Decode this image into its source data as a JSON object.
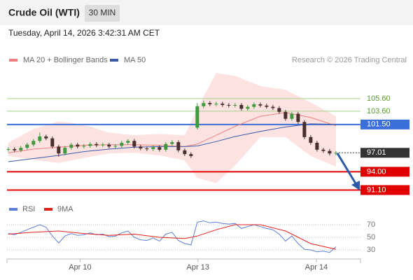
{
  "header": {
    "title": "Crude Oil (WTI)",
    "interval": "30 MIN",
    "timestamp": "Tuesday, April 14, 2026 3:42:31 AM CET"
  },
  "chart_data": [
    {
      "type": "candlestick",
      "annotation": "Research © 2026 Trading Central",
      "x": [
        0,
        1,
        2,
        3,
        4,
        5,
        6,
        7,
        8,
        9,
        10,
        11,
        12,
        13,
        14,
        15,
        16,
        17,
        18,
        19,
        20,
        21,
        22,
        23,
        24,
        25,
        26,
        27,
        28,
        29,
        30,
        31,
        32,
        33,
        34,
        35,
        36,
        37,
        38,
        39,
        40,
        41,
        42,
        43,
        44,
        45,
        46,
        47,
        48,
        49,
        50,
        51,
        52
      ],
      "open": [
        97.5,
        97.6,
        97.4,
        97.8,
        98.3,
        98.9,
        99.6,
        99.3,
        98.0,
        96.9,
        97.8,
        98.3,
        98.0,
        98.1,
        98.4,
        98.2,
        98.3,
        98.0,
        98.1,
        98.6,
        98.9,
        98.0,
        97.7,
        97.6,
        97.9,
        97.5,
        98.4,
        98.7,
        97.4,
        96.8,
        101.0,
        104.4,
        104.9,
        104.7,
        104.8,
        104.6,
        104.5,
        104.6,
        104.0,
        104.3,
        104.7,
        104.5,
        104.3,
        104.1,
        103.5,
        102.4,
        103.2,
        101.9,
        99.5,
        98.6,
        97.5,
        97.3,
        96.9
      ],
      "high": [
        97.9,
        97.9,
        98.1,
        98.6,
        99.2,
        100.2,
        99.9,
        99.6,
        98.3,
        98.1,
        98.6,
        98.6,
        98.4,
        98.7,
        98.7,
        98.6,
        98.6,
        98.4,
        98.9,
        99.2,
        99.2,
        98.3,
        98.0,
        98.2,
        98.2,
        98.7,
        99.0,
        99.0,
        97.7,
        97.1,
        104.9,
        105.3,
        105.2,
        105.1,
        105.1,
        104.9,
        104.9,
        104.9,
        104.6,
        105.0,
        105.0,
        104.8,
        104.6,
        104.4,
        103.8,
        103.5,
        103.5,
        102.2,
        99.8,
        98.9,
        97.8,
        97.6,
        97.3
      ],
      "low": [
        97.2,
        97.1,
        97.1,
        97.5,
        98.0,
        98.6,
        99.0,
        97.7,
        96.4,
        96.6,
        97.5,
        97.7,
        97.7,
        97.8,
        97.9,
        97.9,
        97.7,
        97.7,
        97.8,
        98.3,
        97.7,
        97.4,
        97.3,
        97.3,
        97.2,
        97.2,
        98.1,
        97.1,
        96.5,
        96.2,
        100.7,
        104.1,
        104.4,
        104.4,
        104.3,
        104.2,
        104.2,
        103.7,
        103.7,
        104.0,
        104.2,
        104.0,
        103.8,
        103.2,
        102.1,
        102.1,
        101.6,
        99.2,
        98.3,
        97.2,
        97.0,
        96.6,
        96.6
      ],
      "close": [
        97.6,
        97.4,
        97.8,
        98.3,
        98.9,
        99.6,
        99.3,
        98.0,
        96.9,
        97.8,
        98.3,
        98.0,
        98.1,
        98.4,
        98.2,
        98.3,
        98.0,
        98.1,
        98.6,
        98.9,
        98.0,
        97.7,
        97.6,
        97.9,
        97.5,
        98.4,
        98.7,
        97.4,
        96.8,
        96.5,
        104.4,
        104.9,
        104.7,
        104.8,
        104.6,
        104.5,
        104.6,
        104.0,
        104.3,
        104.7,
        104.5,
        104.3,
        104.1,
        103.5,
        102.4,
        103.2,
        101.9,
        99.5,
        98.6,
        97.5,
        97.3,
        96.9,
        97.01
      ],
      "up_color": "#3d9a3d",
      "down_color": "#4b2f2f",
      "overlays": [
        {
          "name": "MA 20 + Bollinger Bands",
          "color": "#f08080",
          "band_color": "#fde2e2",
          "x": [
            0,
            4,
            8,
            12,
            16,
            20,
            24,
            28,
            30,
            33,
            36,
            40,
            44,
            48,
            52
          ],
          "values": [
            97.0,
            97.6,
            97.9,
            98.2,
            98.3,
            98.3,
            98.2,
            98.0,
            98.4,
            99.8,
            101.2,
            102.8,
            103.4,
            102.6,
            101.3
          ],
          "band_upper": [
            98.6,
            100.8,
            102.0,
            101.5,
            100.2,
            99.8,
            100.0,
            99.8,
            104.0,
            109.7,
            109.2,
            107.6,
            107.0,
            105.0,
            102.8
          ],
          "band_lower": [
            96.5,
            95.9,
            95.4,
            96.2,
            96.9,
            97.0,
            96.6,
            95.8,
            93.0,
            92.2,
            95.0,
            99.5,
            99.5,
            96.5,
            94.8
          ]
        },
        {
          "name": "MA 50",
          "color": "#3a5aa8",
          "x": [
            0,
            4,
            8,
            12,
            16,
            20,
            24,
            28,
            30,
            33,
            36,
            40,
            44,
            48,
            52
          ],
          "values": [
            95.6,
            96.1,
            96.6,
            97.2,
            97.6,
            97.9,
            98.0,
            98.0,
            98.1,
            98.8,
            99.6,
            100.4,
            101.1,
            101.6,
            101.5
          ]
        }
      ],
      "levels": [
        {
          "value": 105.6,
          "label": "105.60",
          "color": "#a8d08d",
          "text_color": "#5a9e2f",
          "label_box": false,
          "line": "solid"
        },
        {
          "value": 103.6,
          "label": "103.60",
          "color": "#a8d08d",
          "text_color": "#5a9e2f",
          "label_box": false,
          "line": "solid"
        },
        {
          "value": 101.5,
          "label": "101.50",
          "color": "#3b6fd8",
          "text_color": "#ffffff",
          "label_box": true,
          "line": "solid"
        },
        {
          "value": 97.01,
          "label": "97.01",
          "color": "#333333",
          "text_color": "#ffffff",
          "label_box": true,
          "line": "dotted"
        },
        {
          "value": 94.0,
          "label": "94.00",
          "color": "#e00000",
          "text_color": "#ffffff",
          "label_box": true,
          "line": "solid"
        },
        {
          "value": 91.1,
          "label": "91.10",
          "color": "#e00000",
          "text_color": "#ffffff",
          "label_box": true,
          "line": "solid"
        }
      ],
      "xlim": [
        -0.2,
        55.9
      ],
      "ylim": [
        89.6,
        110.7
      ]
    },
    {
      "type": "line",
      "x": [
        0,
        1,
        2,
        3,
        4,
        5,
        6,
        7,
        8,
        9,
        10,
        11,
        12,
        13,
        14,
        15,
        16,
        17,
        18,
        19,
        20,
        21,
        22,
        23,
        24,
        25,
        26,
        27,
        28,
        29,
        30,
        31,
        32,
        33,
        34,
        35,
        36,
        37,
        38,
        39,
        40,
        41,
        42,
        43,
        44,
        45,
        46,
        47,
        48,
        49,
        50,
        51,
        52
      ],
      "series": [
        {
          "name": "RSI",
          "color": "#5b7fd6",
          "values": [
            56,
            54,
            58,
            62,
            66,
            70,
            66,
            52,
            41,
            52,
            56,
            53,
            54,
            57,
            54,
            55,
            51,
            52,
            57,
            60,
            50,
            46,
            45,
            49,
            44,
            55,
            58,
            45,
            40,
            38,
            74,
            76,
            73,
            74,
            72,
            71,
            72,
            64,
            67,
            70,
            67,
            64,
            62,
            55,
            44,
            52,
            40,
            31,
            30,
            27,
            28,
            26,
            35
          ]
        },
        {
          "name": "9MA",
          "color": "#e0201c",
          "x": [
            0,
            4,
            8,
            12,
            16,
            20,
            24,
            28,
            30,
            33,
            36,
            40,
            44,
            48,
            52
          ],
          "values": [
            55,
            58,
            60,
            56,
            53,
            55,
            50,
            48,
            52,
            62,
            70,
            70,
            60,
            40,
            31
          ]
        }
      ],
      "xlim": [
        -0.2,
        55.9
      ],
      "ylim": [
        15.6,
        82.2
      ],
      "yticks": [
        30,
        50,
        70
      ],
      "grid": true,
      "xticks": [
        {
          "value": 11.4,
          "label": "Apr 10"
        },
        {
          "value": 30.1,
          "label": "Apr 13"
        },
        {
          "value": 48.9,
          "label": "Apr 14"
        }
      ]
    }
  ]
}
